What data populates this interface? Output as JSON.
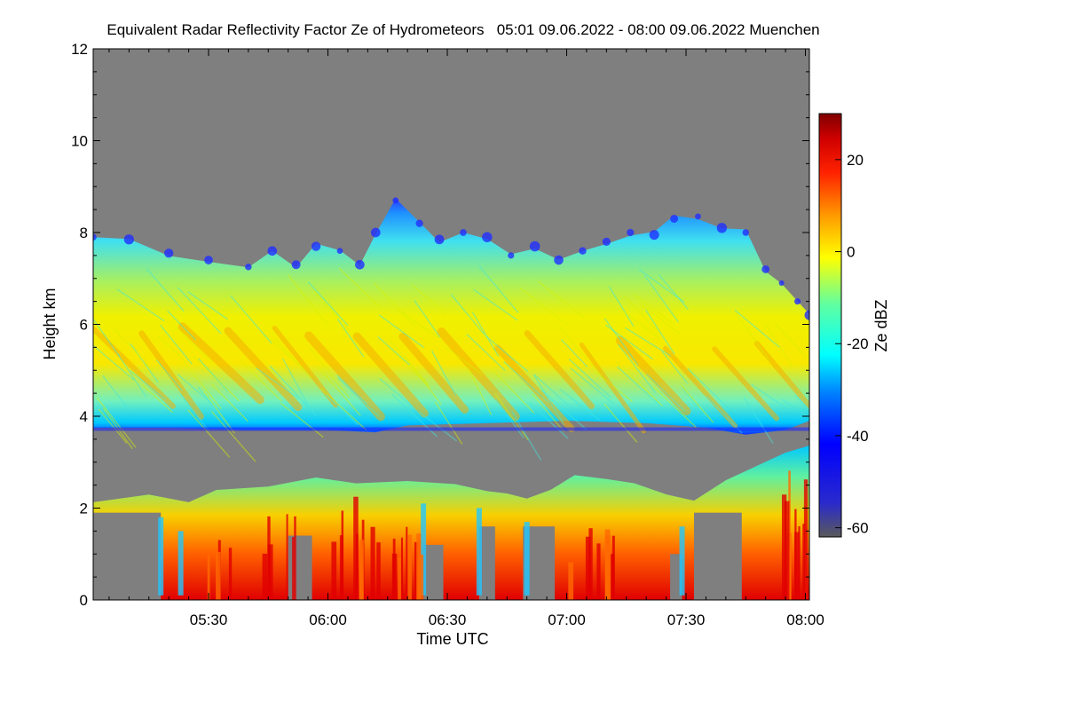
{
  "chart_data": {
    "type": "heatmap",
    "title": "Equivalent Radar Reflectivity Factor Ze of Hydrometeors   05:01 09.06.2022 - 08:00 09.06.2022 Muenchen",
    "xlabel": "Time UTC",
    "ylabel": "Height km",
    "colorbar_label": "Ze dBZ",
    "x_range_utc": [
      "05:01",
      "08:00"
    ],
    "xlim_minutes": [
      301,
      481
    ],
    "x_ticks": [
      {
        "minute": 330,
        "label": "05:30"
      },
      {
        "minute": 360,
        "label": "06:00"
      },
      {
        "minute": 390,
        "label": "06:30"
      },
      {
        "minute": 420,
        "label": "07:00"
      },
      {
        "minute": 450,
        "label": "07:30"
      },
      {
        "minute": 480,
        "label": "08:00"
      }
    ],
    "ylim": [
      0,
      12
    ],
    "y_ticks": [
      0,
      2,
      4,
      6,
      8,
      10,
      12
    ],
    "colorbar_range": [
      -62,
      30
    ],
    "colorbar_ticks": [
      20,
      0,
      -20,
      -40,
      -60
    ],
    "background_color": "#7f7f7f",
    "colormap": [
      "#5a5a5a",
      "#2a2acc",
      "#0000ff",
      "#0080ff",
      "#00ffff",
      "#60ffa0",
      "#ffff00",
      "#ff9900",
      "#ff2200",
      "#d00000",
      "#800000"
    ],
    "echo_layers": [
      {
        "name": "upper cloud layer",
        "base_km_range": [
          3.6,
          4.0
        ],
        "top_km_range": [
          6.1,
          9.0
        ],
        "core_dbz": -5
      },
      {
        "name": "lower precipitation layer",
        "base_km": 0,
        "top_km_range": [
          1.8,
          2.8
        ],
        "max_dbz": 30
      }
    ]
  }
}
